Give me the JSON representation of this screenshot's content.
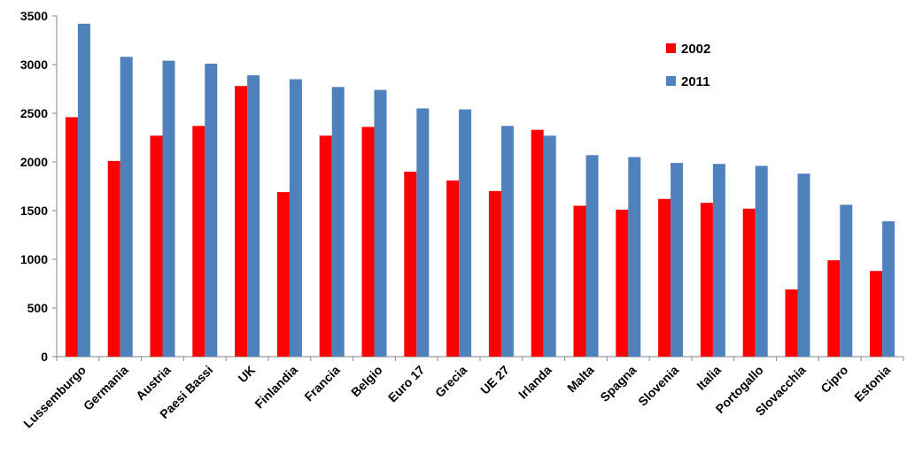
{
  "chart_data": {
    "type": "bar",
    "categories": [
      "Lussemburgo",
      "Germania",
      "Austria",
      "Paesi Bassi",
      "UK",
      "Finlandia",
      "Francia",
      "Belgio",
      "Euro 17",
      "Grecia",
      "UE 27",
      "Irlanda",
      "Malta",
      "Spagna",
      "Slovenia",
      "Italia",
      "Portogallo",
      "Slovacchia",
      "Cipro",
      "Estonia"
    ],
    "series": [
      {
        "name": "2002",
        "color": "#ff0000",
        "values": [
          2460,
          2010,
          2270,
          2370,
          2780,
          1690,
          2270,
          2360,
          1900,
          1810,
          1700,
          2330,
          1550,
          1510,
          1620,
          1580,
          1520,
          690,
          990,
          880
        ]
      },
      {
        "name": "2011",
        "color": "#4f81bd",
        "values": [
          3420,
          3080,
          3040,
          3010,
          2890,
          2850,
          2770,
          2740,
          2550,
          2540,
          2370,
          2270,
          2070,
          2050,
          1990,
          1980,
          1960,
          1880,
          1560,
          1390
        ]
      }
    ],
    "yticks": [
      0,
      500,
      1000,
      1500,
      2000,
      2500,
      3000,
      3500
    ],
    "ylim": [
      0,
      3500
    ],
    "title": "",
    "xlabel": "",
    "ylabel": "",
    "legend_position": "top-right",
    "grid": false
  }
}
